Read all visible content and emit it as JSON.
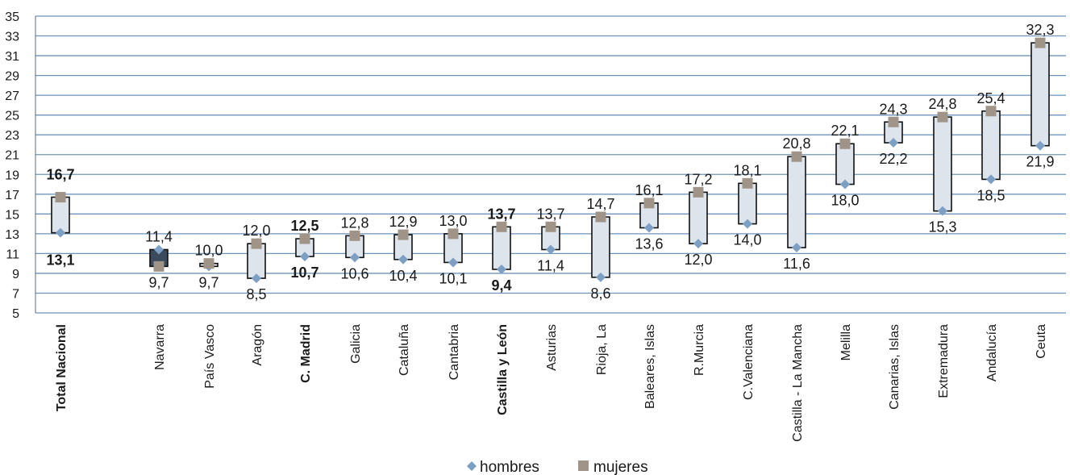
{
  "chart_data": {
    "type": "range",
    "ylim": [
      5,
      35
    ],
    "yticks": [
      5,
      7,
      9,
      11,
      13,
      15,
      17,
      19,
      21,
      23,
      25,
      27,
      29,
      31,
      33,
      35
    ],
    "grid": true,
    "legend_position": "bottom",
    "categories": [
      {
        "name": "Total Nacional",
        "hombres": 13.1,
        "mujeres": 16.7,
        "hombres_label": "13,1",
        "mujeres_label": "16,7",
        "bold": true
      },
      {
        "name": "Navarra",
        "hombres": 11.4,
        "mujeres": 9.7,
        "hombres_label": "11,4",
        "mujeres_label": "9,7",
        "bold": false
      },
      {
        "name": "País Vasco",
        "hombres": 9.7,
        "mujeres": 10.0,
        "hombres_label": "9,7",
        "mujeres_label": "10,0",
        "bold": false
      },
      {
        "name": "Aragón",
        "hombres": 8.5,
        "mujeres": 12.0,
        "hombres_label": "8,5",
        "mujeres_label": "12,0",
        "bold": false
      },
      {
        "name": "C. Madrid",
        "hombres": 10.7,
        "mujeres": 12.5,
        "hombres_label": "10,7",
        "mujeres_label": "12,5",
        "bold": true
      },
      {
        "name": "Galicia",
        "hombres": 10.6,
        "mujeres": 12.8,
        "hombres_label": "10,6",
        "mujeres_label": "12,8",
        "bold": false
      },
      {
        "name": "Cataluña",
        "hombres": 10.4,
        "mujeres": 12.9,
        "hombres_label": "10,4",
        "mujeres_label": "12,9",
        "bold": false
      },
      {
        "name": "Cantabria",
        "hombres": 10.1,
        "mujeres": 13.0,
        "hombres_label": "10,1",
        "mujeres_label": "13,0",
        "bold": false
      },
      {
        "name": "Castilla y León",
        "hombres": 9.4,
        "mujeres": 13.7,
        "hombres_label": "9,4",
        "mujeres_label": "13,7",
        "bold": true
      },
      {
        "name": "Asturias",
        "hombres": 11.4,
        "mujeres": 13.7,
        "hombres_label": "11,4",
        "mujeres_label": "13,7",
        "bold": false
      },
      {
        "name": "Rioja, La",
        "hombres": 8.6,
        "mujeres": 14.7,
        "hombres_label": "8,6",
        "mujeres_label": "14,7",
        "bold": false
      },
      {
        "name": "Baleares, Islas",
        "hombres": 13.6,
        "mujeres": 16.1,
        "hombres_label": "13,6",
        "mujeres_label": "16,1",
        "bold": false
      },
      {
        "name": "R.Murcia",
        "hombres": 12.0,
        "mujeres": 17.2,
        "hombres_label": "12,0",
        "mujeres_label": "17,2",
        "bold": false
      },
      {
        "name": "C.Valenciana",
        "hombres": 14.0,
        "mujeres": 18.1,
        "hombres_label": "14,0",
        "mujeres_label": "18,1",
        "bold": false
      },
      {
        "name": "Castilla - La Mancha",
        "hombres": 11.6,
        "mujeres": 20.8,
        "hombres_label": "11,6",
        "mujeres_label": "20,8",
        "bold": false
      },
      {
        "name": "Melilla",
        "hombres": 18.0,
        "mujeres": 22.1,
        "hombres_label": "18,0",
        "mujeres_label": "22,1",
        "bold": false
      },
      {
        "name": "Canarias, Islas",
        "hombres": 22.2,
        "mujeres": 24.3,
        "hombres_label": "22,2",
        "mujeres_label": "24,3",
        "bold": false
      },
      {
        "name": "Extremadura",
        "hombres": 15.3,
        "mujeres": 24.8,
        "hombres_label": "15,3",
        "mujeres_label": "24,8",
        "bold": false
      },
      {
        "name": "Andalucía",
        "hombres": 18.5,
        "mujeres": 25.4,
        "hombres_label": "18,5",
        "mujeres_label": "25,4",
        "bold": false
      },
      {
        "name": "Ceuta",
        "hombres": 21.9,
        "mujeres": 32.3,
        "hombres_label": "21,9",
        "mujeres_label": "32,3",
        "bold": false
      }
    ],
    "series": [
      {
        "name": "hombres",
        "marker": "diamond",
        "color": "#7e9fc4"
      },
      {
        "name": "mujeres",
        "marker": "square",
        "color": "#a09488"
      }
    ],
    "colors": {
      "grid": "#6f94b8",
      "box_fill": "#dde4ec",
      "box_fill_dark": "#3b4a5c",
      "box_stroke": "#111111"
    }
  }
}
